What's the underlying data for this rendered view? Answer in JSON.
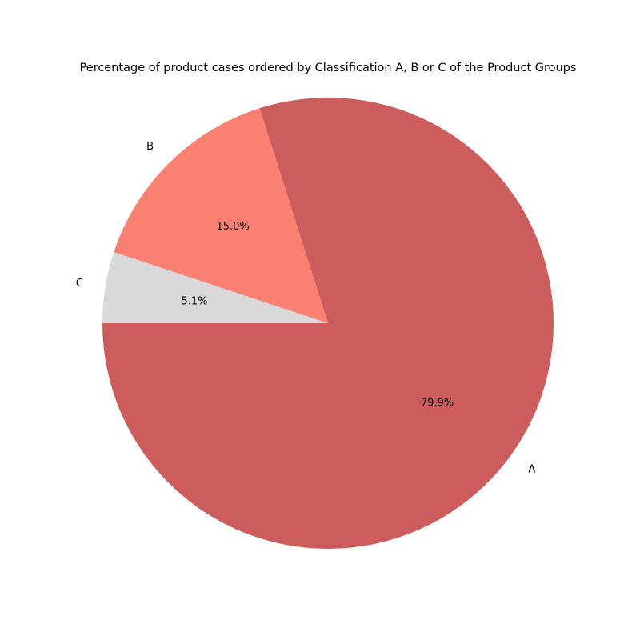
{
  "chart_data": {
    "type": "pie",
    "title": "Percentage of product cases ordered by Classification A, B or C of the Product Groups",
    "start_angle_deg": 180,
    "direction": "counterclockwise",
    "slices": [
      {
        "label": "A",
        "value": 79.9,
        "pct_label": "79.9%",
        "color": "#cd5c5c"
      },
      {
        "label": "B",
        "value": 15.0,
        "pct_label": "15.0%",
        "color": "#fa8072"
      },
      {
        "label": "C",
        "value": 5.1,
        "pct_label": "5.1%",
        "color": "#d9d9d9"
      }
    ]
  }
}
